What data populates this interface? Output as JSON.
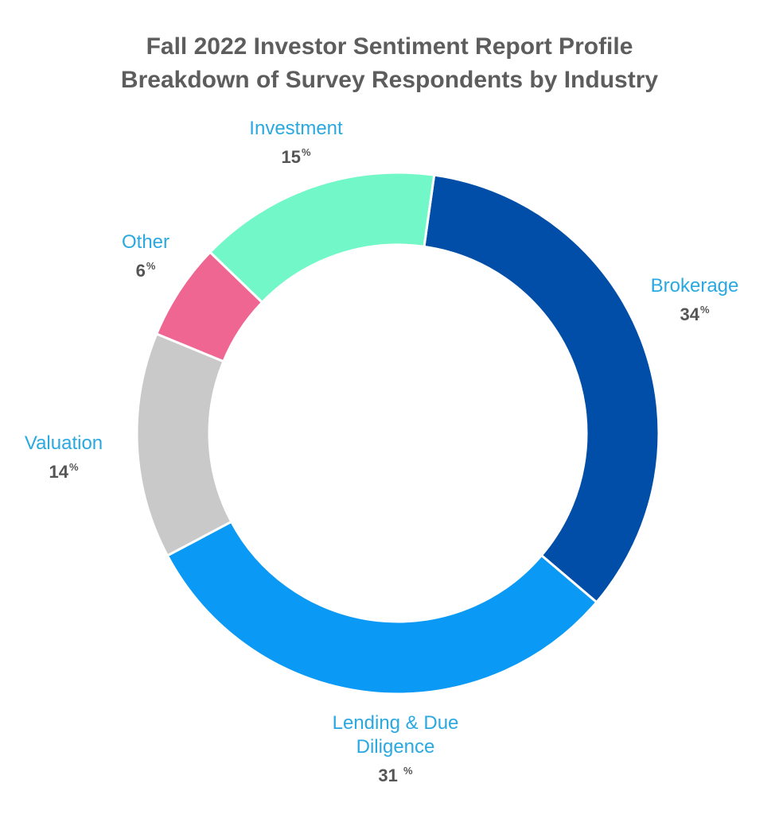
{
  "chart_data": {
    "type": "pie",
    "title": [
      "Fall 2022 Investor Sentiment Report Profile",
      "Breakdown of Survey Respondents by Industry"
    ],
    "unit_symbol": "%",
    "slices": [
      {
        "name": "Brokerage",
        "name_lines": [
          "Brokerage"
        ],
        "value": 34,
        "value_text": "34",
        "color": "#004ea8"
      },
      {
        "name": "Lending & Due Diligence",
        "name_lines": [
          "Lending & Due",
          "Diligence"
        ],
        "value": 31,
        "value_text": "31 ",
        "color": "#0a99f4"
      },
      {
        "name": "Valuation",
        "name_lines": [
          "Valuation"
        ],
        "value": 14,
        "value_text": "14",
        "color": "#c9c9c9"
      },
      {
        "name": "Other",
        "name_lines": [
          "Other"
        ],
        "value": 6,
        "value_text": "6",
        "color": "#f06693"
      },
      {
        "name": "Investment",
        "name_lines": [
          "Investment"
        ],
        "value": 15,
        "value_text": "15",
        "color": "#72f8c8"
      }
    ],
    "start_angle_deg": 8,
    "direction": "clockwise",
    "hole": "donut",
    "legend": "none"
  }
}
